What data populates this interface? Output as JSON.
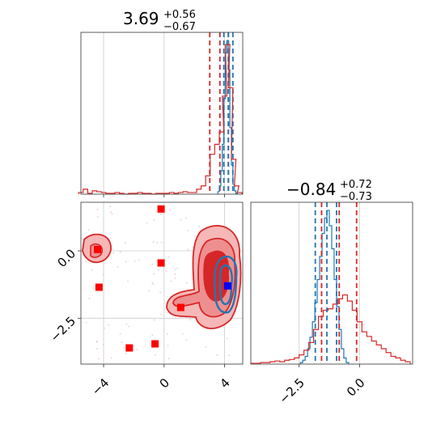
{
  "colors": {
    "red": "#d62728",
    "blue": "#1f77b4",
    "marker_red": "#ff0000",
    "marker_blue": "#0000ff",
    "red_fill": "#f2a2a2",
    "red_fill_dark": "#e05050"
  },
  "titles": {
    "param1": {
      "median": "3.69",
      "plus": "+0.56",
      "minus": "−0.67"
    },
    "param2": {
      "median": "−0.84",
      "plus": "+0.72",
      "minus": "−0.73"
    }
  },
  "chart_data": [
    {
      "type": "histogram",
      "panel": "marginal-param1",
      "title": "3.69 +0.56 −0.67",
      "xlim": [
        -5.5,
        5.2
      ],
      "red_dashed_lines": [
        3.02,
        3.69,
        4.25
      ],
      "blue_dashed_lines": [
        3.95,
        4.25,
        4.55
      ],
      "red_hist": {
        "x": [
          -5.5,
          -5.2,
          -4.9,
          -4.6,
          -4.3,
          -4.0,
          -3.7,
          -3.4,
          -3.1,
          -2.8,
          -2.5,
          -2.2,
          -1.9,
          -1.6,
          -1.3,
          -1.0,
          -0.7,
          -0.4,
          -0.1,
          0.2,
          0.5,
          0.8,
          1.1,
          1.4,
          1.7,
          2.0,
          2.3,
          2.6,
          2.9,
          3.2,
          3.5,
          3.8,
          4.0,
          4.2,
          4.4,
          4.6,
          4.8,
          5.0
        ],
        "y": [
          2,
          6,
          1,
          4,
          3,
          2,
          1,
          1,
          2,
          1,
          0,
          1,
          1,
          2,
          1,
          1,
          0,
          1,
          1,
          1,
          2,
          1,
          2,
          3,
          2,
          2,
          6,
          10,
          22,
          48,
          60,
          75,
          118,
          180,
          128,
          42,
          10,
          2
        ]
      },
      "blue_hist": {
        "x": [
          3.6,
          3.7,
          3.8,
          3.9,
          4.0,
          4.1,
          4.2,
          4.3,
          4.4,
          4.5,
          4.6,
          4.7,
          4.8
        ],
        "y": [
          3,
          10,
          28,
          60,
          115,
          170,
          185,
          150,
          80,
          35,
          12,
          4,
          1
        ]
      }
    },
    {
      "type": "histogram",
      "panel": "marginal-param2",
      "title": "−0.84 +0.72 −0.73",
      "xlim": [
        -4.5,
        2.2
      ],
      "xticks": [
        "−2.5",
        "0.0"
      ],
      "red_dashed_lines": [
        -1.57,
        -0.84,
        -0.12
      ],
      "blue_dashed_lines": [
        -1.83,
        -1.35,
        -0.95
      ],
      "red_hist": {
        "x": [
          -4.4,
          -4.2,
          -4.0,
          -3.8,
          -3.6,
          -3.4,
          -3.2,
          -3.0,
          -2.8,
          -2.6,
          -2.4,
          -2.2,
          -2.0,
          -1.8,
          -1.6,
          -1.4,
          -1.2,
          -1.0,
          -0.8,
          -0.6,
          -0.4,
          -0.2,
          0.0,
          0.2,
          0.4,
          0.6,
          0.8,
          1.0,
          1.2,
          1.4,
          1.6,
          1.8,
          2.0
        ],
        "y": [
          1,
          1,
          2,
          2,
          3,
          4,
          3,
          5,
          6,
          8,
          12,
          18,
          28,
          45,
          62,
          70,
          72,
          78,
          85,
          90,
          82,
          70,
          55,
          42,
          36,
          30,
          25,
          20,
          15,
          10,
          8,
          5,
          3
        ]
      },
      "blue_hist": {
        "x": [
          -2.4,
          -2.3,
          -2.2,
          -2.1,
          -2.0,
          -1.9,
          -1.8,
          -1.7,
          -1.6,
          -1.5,
          -1.4,
          -1.3,
          -1.2,
          -1.1,
          -1.0,
          -0.9,
          -0.8,
          -0.7,
          -0.6,
          -0.5
        ],
        "y": [
          2,
          5,
          10,
          20,
          35,
          55,
          80,
          110,
          140,
          170,
          190,
          200,
          180,
          150,
          110,
          75,
          45,
          20,
          8,
          2
        ]
      }
    },
    {
      "type": "scatter",
      "panel": "joint",
      "xlim": [
        -5.5,
        5.2
      ],
      "ylim": [
        -4.2,
        1.8
      ],
      "xticks": [
        "−4",
        "0",
        "4"
      ],
      "yticks": [
        "0.0",
        "−2.5"
      ],
      "red_squares": [
        {
          "x": -0.2,
          "y": 1.55
        },
        {
          "x": -4.4,
          "y": 0.05
        },
        {
          "x": -0.2,
          "y": -0.45
        },
        {
          "x": -4.3,
          "y": -1.35
        },
        {
          "x": 1.1,
          "y": -2.1
        },
        {
          "x": -2.3,
          "y": -3.6
        },
        {
          "x": -0.6,
          "y": -3.45
        }
      ],
      "blue_squares": [
        {
          "x": 4.2,
          "y": -1.3
        }
      ]
    }
  ]
}
